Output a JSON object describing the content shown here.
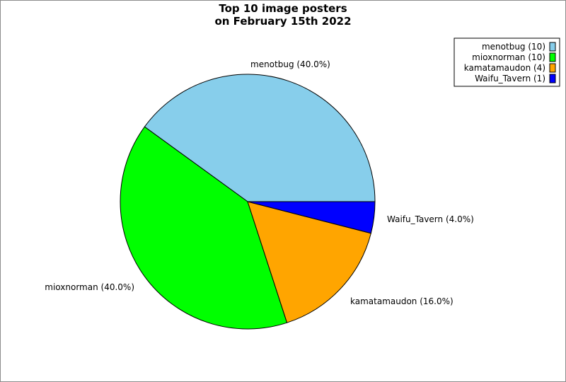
{
  "chart_data": {
    "type": "pie",
    "title": [
      "Top 10 image posters",
      "on February 15th 2022"
    ],
    "slices": [
      {
        "label": "menotbug (40.0%)",
        "legend": "menotbug (10)",
        "value": 10,
        "percent": 40.0,
        "color": "#87ceeb"
      },
      {
        "label": "mioxnorman (40.0%)",
        "legend": "mioxnorman (10)",
        "value": 10,
        "percent": 40.0,
        "color": "#00ff00"
      },
      {
        "label": "kamatamaudon (16.0%)",
        "legend": "kamatamaudon (4)",
        "value": 4,
        "percent": 16.0,
        "color": "#ffa500"
      },
      {
        "label": "Waifu_Tavern (4.0%)",
        "legend": "Waifu_Tavern (1)",
        "value": 1,
        "percent": 4.0,
        "color": "#0000ff"
      }
    ],
    "legend_position": "top-right",
    "start_angle_deg": 0,
    "direction": "counterclockwise"
  }
}
